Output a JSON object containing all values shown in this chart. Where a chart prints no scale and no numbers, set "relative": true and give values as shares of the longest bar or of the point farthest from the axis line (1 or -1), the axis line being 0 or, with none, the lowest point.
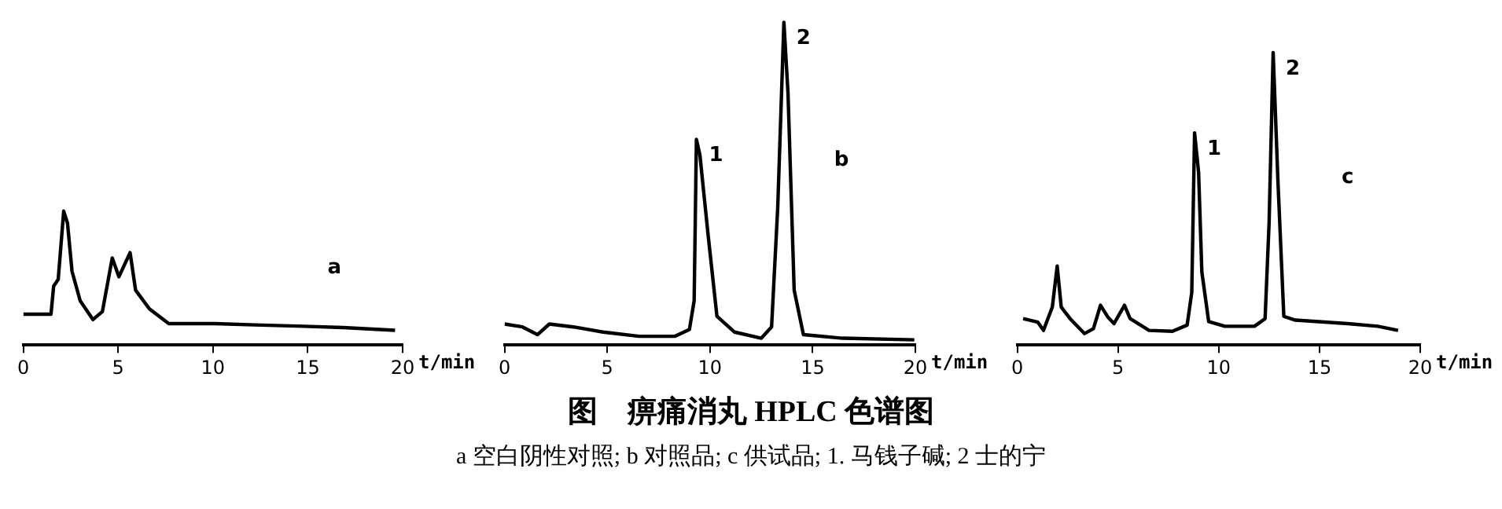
{
  "chart_data": [
    {
      "type": "line",
      "relative": true,
      "xlabel": "t/min",
      "xlim": [
        0,
        20
      ],
      "xticks": [
        0,
        5,
        10,
        15,
        20
      ],
      "color": "#000000",
      "x": [
        0,
        1.46,
        1.6,
        1.84,
        2.13,
        2.33,
        2.57,
        3.0,
        3.67,
        4.17,
        4.69,
        5.04,
        5.63,
        5.92,
        6.65,
        7.67,
        10.1,
        12.2,
        14.8,
        16.85,
        19.6
      ],
      "values": [
        0.23,
        0.23,
        0.44,
        0.49,
        1.0,
        0.91,
        0.55,
        0.33,
        0.19,
        0.25,
        0.65,
        0.51,
        0.69,
        0.41,
        0.27,
        0.16,
        0.16,
        0.15,
        0.14,
        0.13,
        0.11
      ],
      "annotations": [
        "a"
      ]
    },
    {
      "type": "line",
      "relative": true,
      "xlabel": "t/min",
      "xlim": [
        0,
        20
      ],
      "xticks": [
        0,
        5,
        10,
        15,
        20
      ],
      "color": "#000000",
      "x": [
        0,
        0.87,
        1.6,
        2.18,
        3.35,
        4.8,
        6.55,
        8.3,
        9.0,
        9.23,
        9.34,
        9.51,
        9.9,
        10.34,
        11.2,
        12.5,
        13.0,
        13.3,
        13.6,
        13.8,
        14.1,
        14.55,
        16.45,
        19.95
      ],
      "values": [
        0.065,
        0.056,
        0.032,
        0.065,
        0.056,
        0.04,
        0.027,
        0.027,
        0.048,
        0.137,
        0.637,
        0.589,
        0.347,
        0.089,
        0.04,
        0.021,
        0.056,
        0.427,
        1.0,
        0.78,
        0.17,
        0.032,
        0.021,
        0.016
      ],
      "annotations": [
        {
          "text": "1",
          "x": 9.34,
          "y": 0.637
        },
        {
          "text": "2",
          "x": 13.6,
          "y": 1.0
        },
        "b"
      ]
    },
    {
      "type": "line",
      "relative": true,
      "xlabel": "t/min",
      "xlim": [
        0,
        20
      ],
      "xticks": [
        0,
        5,
        10,
        15,
        20
      ],
      "color": "#000000",
      "x": [
        0.29,
        1.02,
        1.3,
        1.74,
        1.98,
        2.18,
        2.62,
        3.34,
        3.78,
        4.13,
        4.5,
        4.8,
        5.32,
        5.6,
        6.54,
        7.7,
        8.43,
        8.66,
        8.8,
        9.0,
        9.16,
        9.5,
        10.3,
        11.77,
        12.3,
        12.5,
        12.7,
        12.94,
        13.23,
        13.8,
        16.4,
        17.9,
        18.9
      ],
      "values": [
        0.09,
        0.078,
        0.05,
        0.13,
        0.27,
        0.13,
        0.09,
        0.039,
        0.056,
        0.136,
        0.095,
        0.073,
        0.136,
        0.09,
        0.05,
        0.047,
        0.068,
        0.18,
        0.725,
        0.59,
        0.25,
        0.08,
        0.064,
        0.064,
        0.09,
        0.42,
        1.0,
        0.556,
        0.098,
        0.085,
        0.073,
        0.064,
        0.05
      ],
      "annotations": [
        {
          "text": "1",
          "x": 8.8,
          "y": 0.725
        },
        {
          "text": "2",
          "x": 12.7,
          "y": 1.0
        },
        "c"
      ]
    },
    {
      "type": "other",
      "title": "图　痹痛消丸 HPLC 色谱图",
      "annotations": [
        "a 空白阴性对照; b 对照品; c 供试品; 1. 马钱子碱; 2 士的宁"
      ]
    }
  ]
}
